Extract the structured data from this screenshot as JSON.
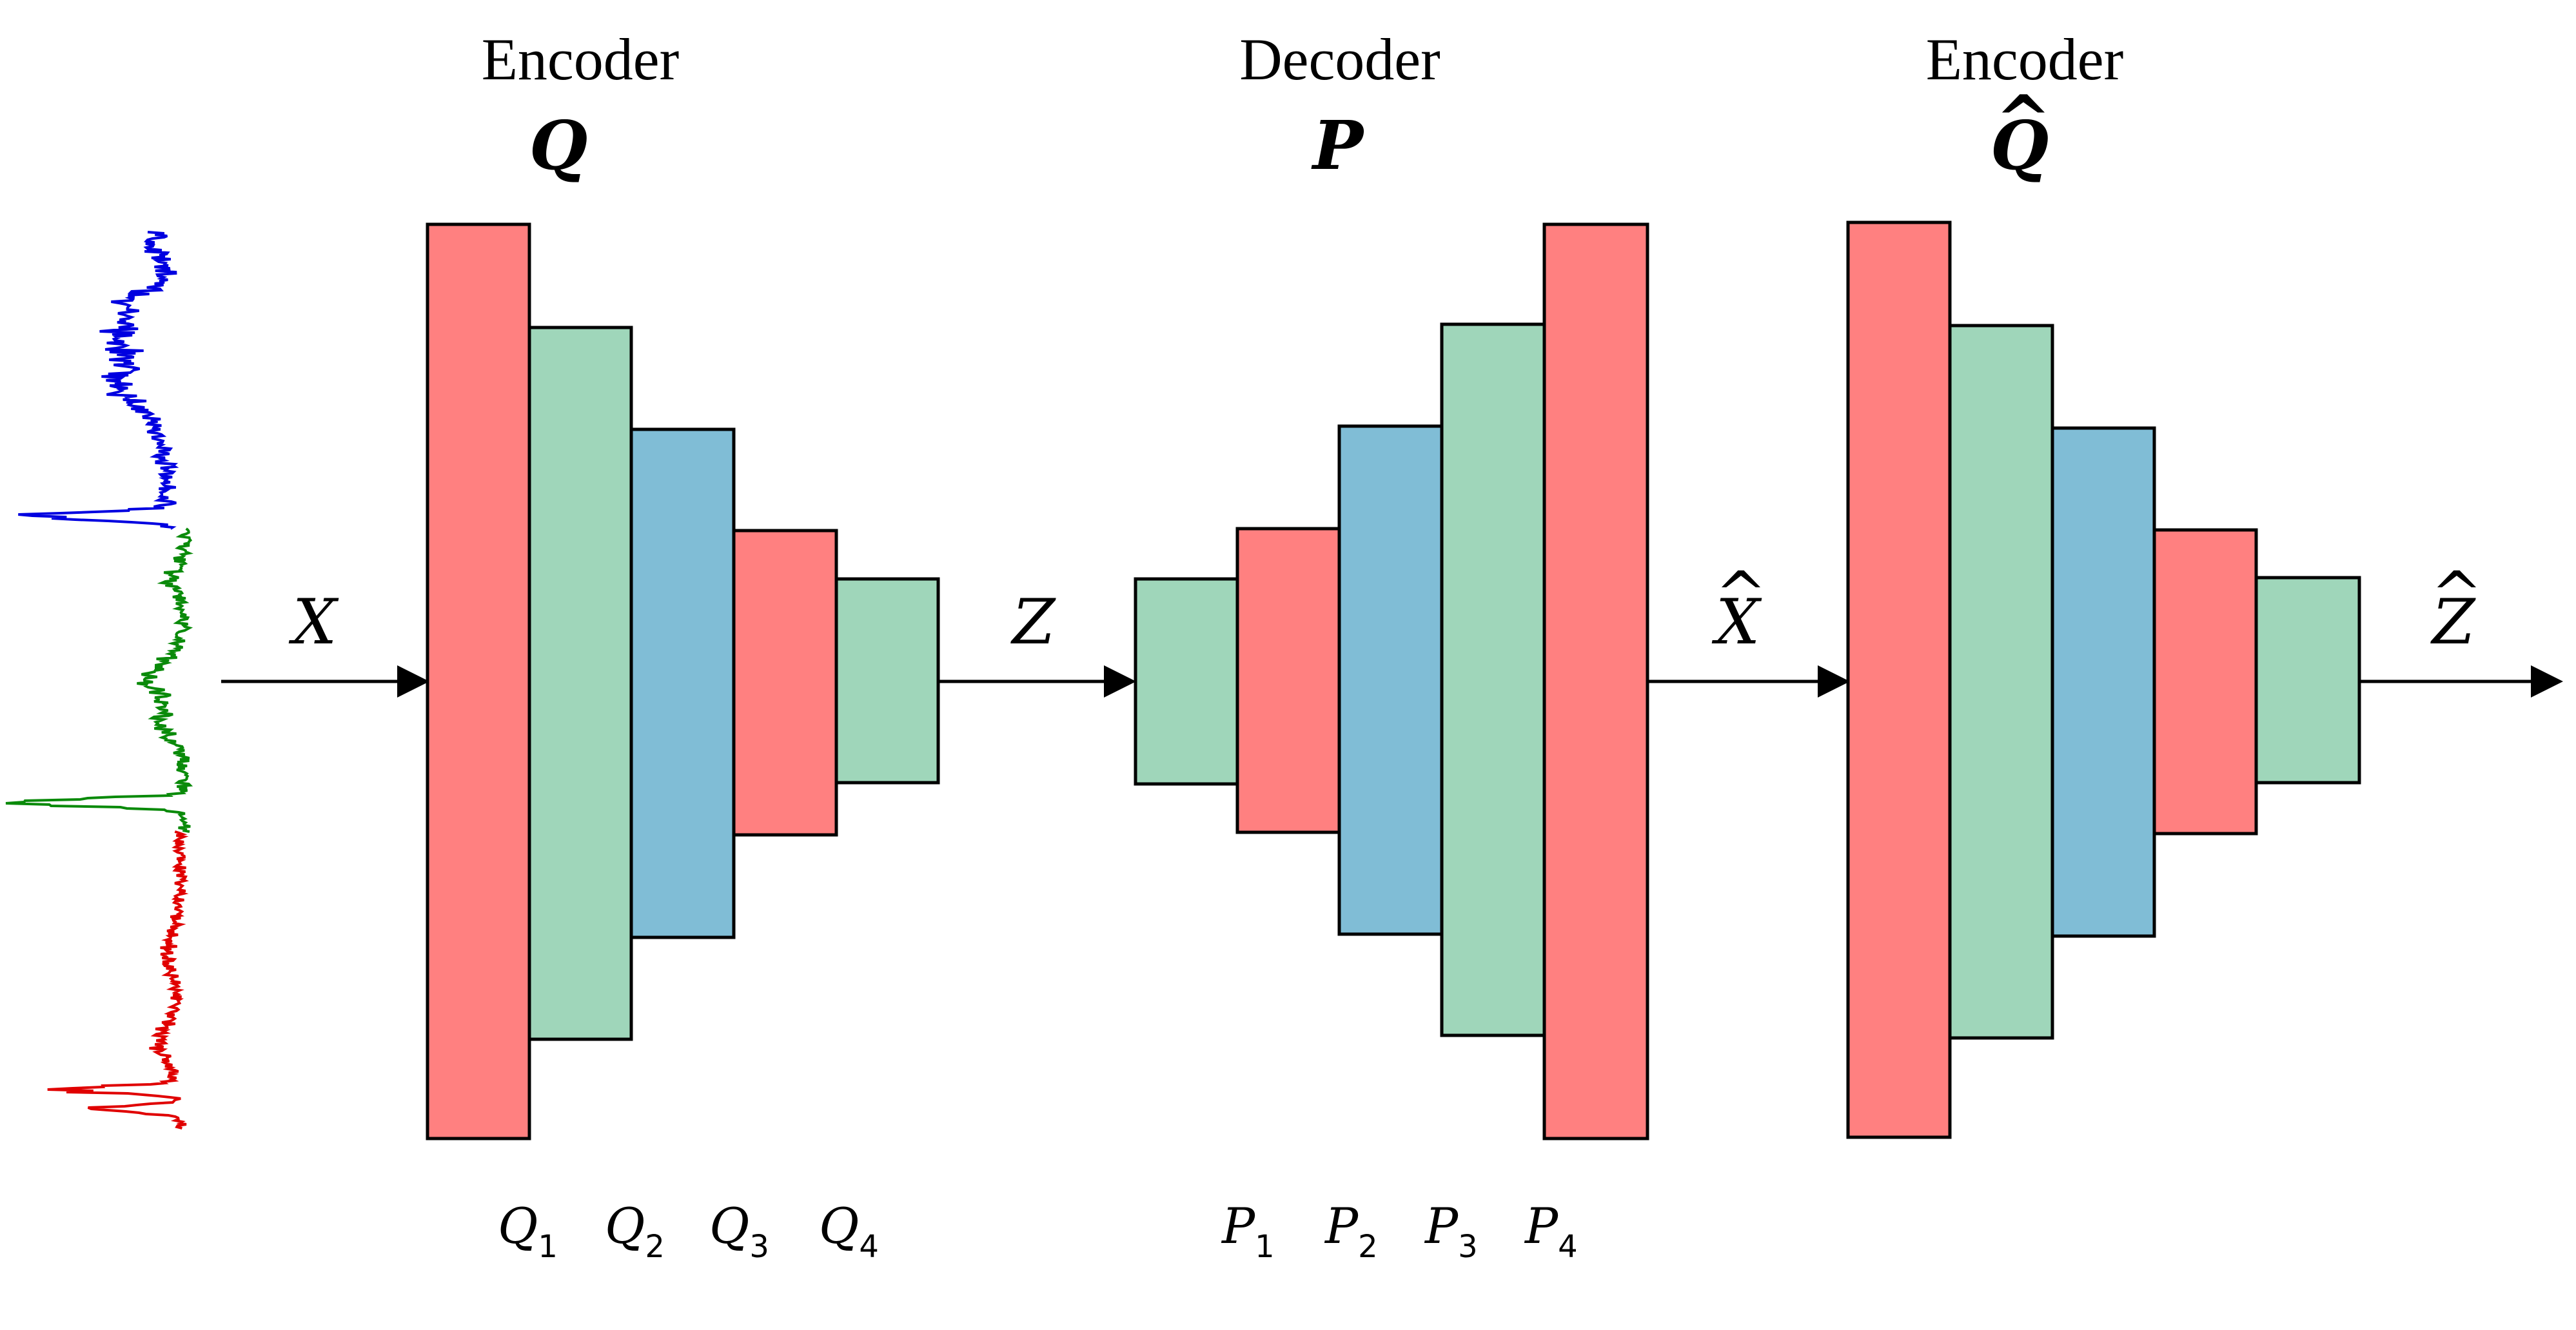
{
  "colors": {
    "red": "#ff8080",
    "green": "#9fd6ba",
    "blue": "#80bdd6",
    "signal_blue": "#0000e0",
    "signal_green": "#0a8a0a",
    "signal_red": "#e00000"
  },
  "blocks": [
    {
      "title": "Encoder",
      "symbol": "Q",
      "hat": false
    },
    {
      "title": "Decoder",
      "symbol": "P",
      "hat": false
    },
    {
      "title": "Encoder",
      "symbol": "Q",
      "hat": true
    }
  ],
  "flow_labels": [
    {
      "symbol": "X",
      "hat": false
    },
    {
      "symbol": "Z",
      "hat": false
    },
    {
      "symbol": "X",
      "hat": true
    },
    {
      "symbol": "Z",
      "hat": true
    }
  ],
  "encoder_layers": [
    {
      "base": "Q",
      "sub": "1"
    },
    {
      "base": "Q",
      "sub": "2"
    },
    {
      "base": "Q",
      "sub": "3"
    },
    {
      "base": "Q",
      "sub": "4"
    }
  ],
  "decoder_layers": [
    {
      "base": "P",
      "sub": "1"
    },
    {
      "base": "P",
      "sub": "2"
    },
    {
      "base": "P",
      "sub": "3"
    },
    {
      "base": "P",
      "sub": "4"
    }
  ]
}
